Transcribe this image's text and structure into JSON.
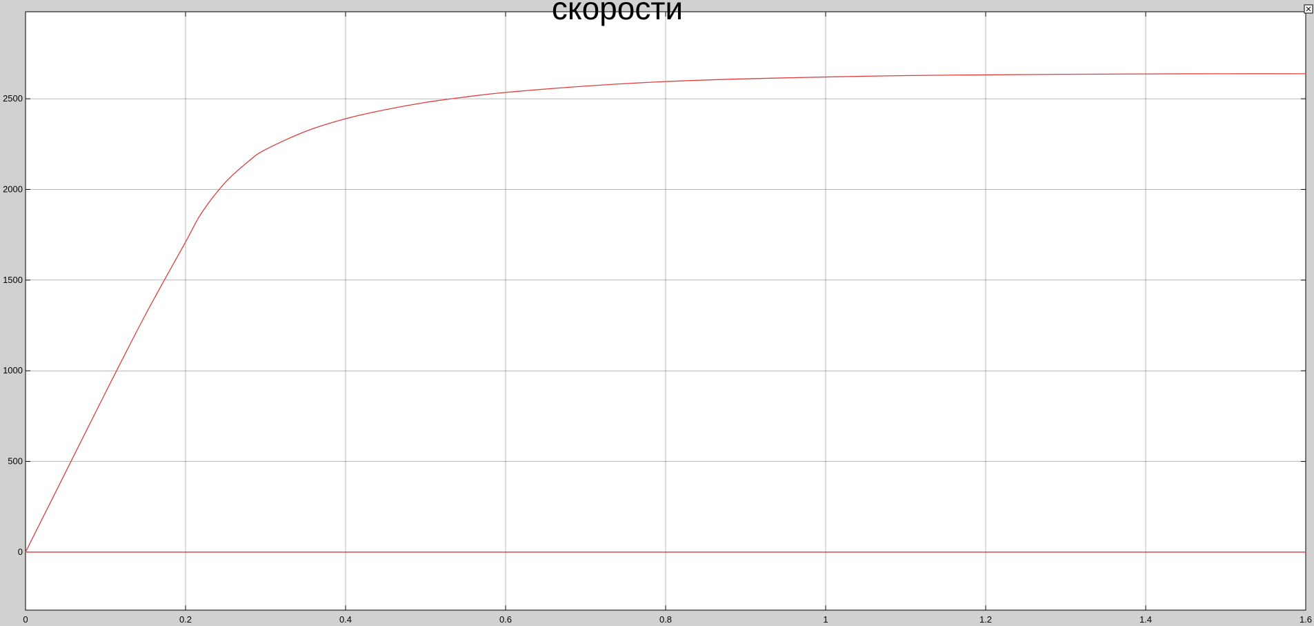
{
  "chart_data": {
    "type": "line",
    "title": "скорости",
    "xlabel": "",
    "ylabel": "",
    "xlim": [
      0,
      1.6
    ],
    "ylim": [
      -320,
      2980
    ],
    "grid": true,
    "x_ticks": [
      0,
      0.2,
      0.4,
      0.6,
      0.8,
      1,
      1.2,
      1.4,
      1.6
    ],
    "x_tick_labels": [
      "0",
      "0.2",
      "0.4",
      "0.6",
      "0.8",
      "1",
      "1.2",
      "1.4",
      "1.6"
    ],
    "y_ticks": [
      0,
      500,
      1000,
      1500,
      2000,
      2500
    ],
    "y_tick_labels": [
      "0",
      "500",
      "1000",
      "1500",
      "2000",
      "2500"
    ],
    "series": [
      {
        "color": "#e03c3c",
        "x": [
          0,
          0.05,
          0.1,
          0.15,
          0.2,
          0.22,
          0.25,
          0.28,
          0.3,
          0.35,
          0.4,
          0.45,
          0.5,
          0.55,
          0.6,
          0.7,
          0.8,
          0.9,
          1.0,
          1.1,
          1.2,
          1.3,
          1.4,
          1.5,
          1.6
        ],
        "y": [
          0,
          440,
          880,
          1310,
          1710,
          1870,
          2040,
          2160,
          2220,
          2320,
          2390,
          2440,
          2480,
          2510,
          2535,
          2570,
          2595,
          2610,
          2620,
          2628,
          2632,
          2635,
          2637,
          2638,
          2638
        ]
      },
      {
        "color": "#e03c3c",
        "x": [
          0,
          1.6
        ],
        "y": [
          0,
          0
        ]
      }
    ]
  },
  "ui": {
    "resize_icon": "resize-icon"
  }
}
